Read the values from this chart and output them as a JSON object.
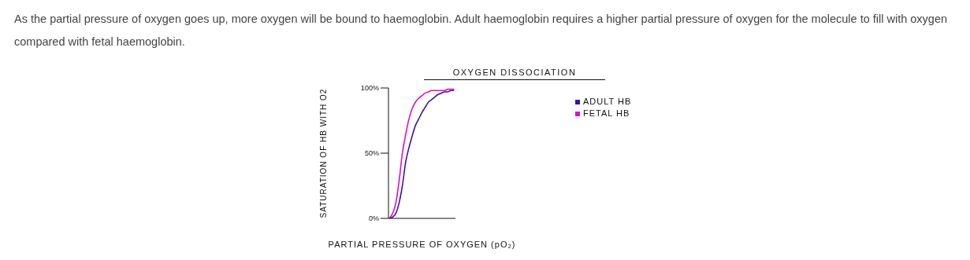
{
  "chart_data": {
    "type": "line",
    "title": "OXYGEN DISSOCIATION",
    "xlabel": "PARTIAL PRESSURE OF OXYGEN (pO₂)",
    "ylabel": "SATURATION OF HB WITH O2",
    "annotations": [
      "As the partial pressure of oxygen goes up, more oxygen will be bound to haemoglobin. Adult haemoglobin requires a higher partial pressure of oxygen for the molecule to fill with oxygen compared with fetal haemoglobin."
    ],
    "categories": [
      null,
      null,
      null,
      null,
      null,
      null,
      null,
      null,
      null,
      null,
      null,
      null,
      null,
      null,
      null,
      null,
      null,
      null,
      null,
      null,
      null
    ],
    "series": [
      {
        "name": "FETAL HB",
        "color": "#e010c8",
        "values": [
          0,
          4,
          12,
          29,
          50,
          64,
          76,
          84,
          89,
          92,
          94,
          96,
          97,
          98,
          98,
          98,
          98,
          98,
          99,
          99,
          99
        ]
      },
      {
        "name": "ADULT HB",
        "color": "#3a14a8",
        "values": [
          0,
          1,
          4,
          12,
          25,
          43,
          54,
          63,
          71,
          76,
          81,
          85,
          89,
          91,
          93,
          95,
          96,
          97,
          97,
          98,
          98
        ]
      }
    ],
    "ylim": [
      0,
      100
    ],
    "yticks": [
      {
        "value": 0,
        "label": "0%"
      },
      {
        "value": 50,
        "label": "50%"
      },
      {
        "value": 100,
        "label": "100%"
      }
    ],
    "grid": false,
    "legend": "right",
    "marker": "none",
    "line_style": "solid"
  }
}
